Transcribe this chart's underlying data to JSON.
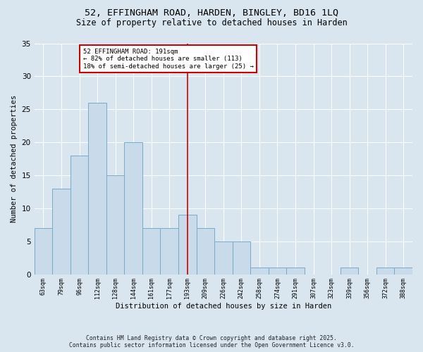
{
  "title_line1": "52, EFFINGHAM ROAD, HARDEN, BINGLEY, BD16 1LQ",
  "title_line2": "Size of property relative to detached houses in Harden",
  "xlabel": "Distribution of detached houses by size in Harden",
  "ylabel": "Number of detached properties",
  "categories": [
    "63sqm",
    "79sqm",
    "96sqm",
    "112sqm",
    "128sqm",
    "144sqm",
    "161sqm",
    "177sqm",
    "193sqm",
    "209sqm",
    "226sqm",
    "242sqm",
    "258sqm",
    "274sqm",
    "291sqm",
    "307sqm",
    "323sqm",
    "339sqm",
    "356sqm",
    "372sqm",
    "388sqm"
  ],
  "values": [
    7,
    13,
    18,
    26,
    15,
    20,
    7,
    7,
    9,
    7,
    5,
    5,
    1,
    1,
    1,
    0,
    0,
    1,
    0,
    1,
    1
  ],
  "bar_color": "#c9daea",
  "bar_edge_color": "#7aaac8",
  "vline_color": "#cc0000",
  "annotation_text": "52 EFFINGHAM ROAD: 191sqm\n← 82% of detached houses are smaller (113)\n18% of semi-detached houses are larger (25) →",
  "annotation_box_color": "#ffffff",
  "annotation_box_edge_color": "#cc0000",
  "ylim": [
    0,
    35
  ],
  "yticks": [
    0,
    5,
    10,
    15,
    20,
    25,
    30,
    35
  ],
  "bg_color": "#d9e6f0",
  "footer_line1": "Contains HM Land Registry data © Crown copyright and database right 2025.",
  "footer_line2": "Contains public sector information licensed under the Open Government Licence v3.0."
}
